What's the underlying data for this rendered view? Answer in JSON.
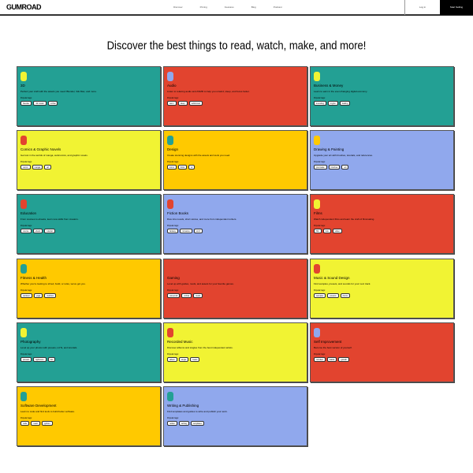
{
  "header": {
    "logo": "GUMROAD",
    "nav": [
      "Discover",
      "Pricing",
      "Features",
      "Blog",
      "Podcast"
    ],
    "login": "Log in",
    "start_selling": "Start Selling"
  },
  "headline": "Discover the best things to read, watch, make, and more!",
  "popular_tags_label": "Popular tags:",
  "colors": {
    "teal": "#23a094",
    "red": "#e2442f",
    "yellow": "#f1f333",
    "gold": "#ffc900",
    "lavender": "#90a8ed"
  },
  "categories": [
    {
      "title": "3D",
      "description": "Perfect your craft with the assets you need: Blender, 3ds Max, and more.",
      "color": "#23a094",
      "icon_color": "#f1f333",
      "tags": [
        "blender",
        "3d model",
        "vrchat"
      ]
    },
    {
      "title": "Audio",
      "description": "Listen to relaxing audio and ASMR to help you unwind, sleep, and focus better.",
      "color": "#e2442f",
      "icon_color": "#90a8ed",
      "tags": [
        "asmr",
        "sleep",
        "subliminal"
      ]
    },
    {
      "title": "Business & Money",
      "description": "Learn to earn in the ever-changing digital economy.",
      "color": "#23a094",
      "icon_color": "#f1f333",
      "tags": [
        "investing",
        "crypto",
        "trading"
      ]
    },
    {
      "title": "Comics & Graphic Novels",
      "description": "Get lost in the worlds of manga, webcomics, and graphic novels.",
      "color": "#f1f333",
      "icon_color": "#e2442f",
      "tags": [
        "comic",
        "manga",
        "art"
      ]
    },
    {
      "title": "Design",
      "description": "Create stunning designs with the assets and tools you need.",
      "color": "#ffc900",
      "icon_color": "#23a094",
      "tags": [
        "icons",
        "fonts",
        "ui"
      ]
    },
    {
      "title": "Drawing & Painting",
      "description": "Upgrade your art with brushes, tutorials, and references.",
      "color": "#90a8ed",
      "icon_color": "#ffc900",
      "tags": [
        "procreate",
        "brushes",
        "art"
      ]
    },
    {
      "title": "Education",
      "description": "From courses to ebooks, learn new skills from creators.",
      "color": "#23a094",
      "icon_color": "#e2442f",
      "tags": [
        "course",
        "ebook",
        "tutorial"
      ]
    },
    {
      "title": "Fiction Books",
      "description": "Dive into novels, short stories, and more from independent writers.",
      "color": "#90a8ed",
      "icon_color": "#e2442f",
      "tags": [
        "fantasy",
        "romance",
        "sci-fi"
      ]
    },
    {
      "title": "Films",
      "description": "Watch independent films and learn the craft of filmmaking.",
      "color": "#e2442f",
      "icon_color": "#f1f333",
      "tags": [
        "film",
        "luts",
        "video"
      ]
    },
    {
      "title": "Fitness & Health",
      "description": "Whether you're looking to shred, build, or relax, we've got you.",
      "color": "#ffc900",
      "icon_color": "#23a094",
      "tags": [
        "workout",
        "yoga",
        "nutrition"
      ]
    },
    {
      "title": "Gaming",
      "description": "Level up with guides, mods, and assets for your favorite games.",
      "color": "#e2442f",
      "icon_color": "#e2442f",
      "tags": [
        "minecraft",
        "vrchat",
        "mods"
      ]
    },
    {
      "title": "Music & Sound Design",
      "description": "Find samples, presets, and sounds for your next track.",
      "color": "#f1f333",
      "icon_color": "#e2442f",
      "tags": [
        "samples",
        "presets",
        "drums"
      ]
    },
    {
      "title": "Photography",
      "description": "Level up your photos with presets, LUTs, and tutorials.",
      "color": "#23a094",
      "icon_color": "#f1f333",
      "tags": [
        "presets",
        "lightroom",
        "luts"
      ]
    },
    {
      "title": "Recorded Music",
      "description": "Discover albums and singles from the best independent artists.",
      "color": "#f1f333",
      "icon_color": "#e2442f",
      "tags": [
        "album",
        "single",
        "beats"
      ]
    },
    {
      "title": "Self Improvement",
      "description": "Become the best version of yourself.",
      "color": "#e2442f",
      "icon_color": "#90a8ed",
      "tags": [
        "mindset",
        "habits",
        "growth"
      ]
    },
    {
      "title": "Software Development",
      "description": "Learn to code and find tools to build better software.",
      "color": "#ffc900",
      "icon_color": "#23a094",
      "tags": [
        "code",
        "react",
        "python"
      ]
    },
    {
      "title": "Writing & Publishing",
      "description": "Find templates and guides to write and publish your work.",
      "color": "#90a8ed",
      "icon_color": "#23a094",
      "tags": [
        "notion",
        "writing",
        "templates"
      ]
    }
  ]
}
